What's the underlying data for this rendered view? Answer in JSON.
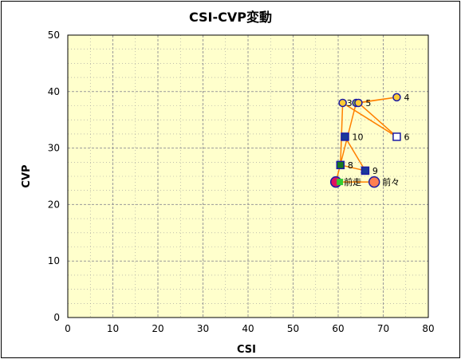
{
  "chart_data": {
    "type": "scatter",
    "title": "CSI-CVP変動",
    "xlabel": "CSI",
    "ylabel": "CVP",
    "xlim": [
      0,
      80
    ],
    "ylim": [
      0,
      50
    ],
    "xticks": [
      "0",
      "10",
      "20",
      "30",
      "40",
      "50",
      "60",
      "70",
      "80"
    ],
    "yticks": [
      "0",
      "10",
      "20",
      "30",
      "40",
      "50"
    ],
    "grid": true,
    "colors": {
      "plot_background": "#ffffcc",
      "border": "#000000",
      "grid": "#999999",
      "trail_line": "#ff8000",
      "marker_edge_blue": "#1a1aa6"
    },
    "trail_order": [
      "前々",
      "前走",
      "3",
      "4",
      "5",
      "6",
      "7",
      "8",
      "9",
      "10"
    ],
    "points": [
      {
        "label": "前々",
        "x": 68,
        "y": 24,
        "marker": "circle",
        "size": "large",
        "fill": "#ff7f50",
        "edge": "#1a1aa6",
        "label_side": "right"
      },
      {
        "label": "前走",
        "x": 59.5,
        "y": 24,
        "marker": "circle",
        "size": "large",
        "fill": "#e0115f",
        "edge": "#1a1aa6",
        "label_side": "right",
        "inner": "#33cc33"
      },
      {
        "label": "3",
        "x": 64,
        "y": 38,
        "marker": "circle",
        "size": "small",
        "fill": "#99cc33",
        "edge": "#1a1aa6",
        "label_side": "left"
      },
      {
        "label": "4",
        "x": 73,
        "y": 39,
        "marker": "circle",
        "size": "small",
        "fill": "#ffcc33",
        "edge": "#1a1aa6",
        "label_side": "right"
      },
      {
        "label": "5",
        "x": 64.5,
        "y": 38,
        "marker": "circle",
        "size": "small",
        "fill": "#ffcc33",
        "edge": "#1a1aa6",
        "label_side": "right"
      },
      {
        "label": "6",
        "x": 73,
        "y": 32,
        "marker": "square",
        "size": "small",
        "fill": "#ffffff",
        "edge": "#1a1aa6",
        "label_side": "right"
      },
      {
        "label": "7",
        "x": 61,
        "y": 38,
        "marker": "circle",
        "size": "small",
        "fill": "#ffcc33",
        "edge": "#1a1aa6",
        "label_side": "none"
      },
      {
        "label": "8",
        "x": 60.5,
        "y": 27,
        "marker": "square",
        "size": "small",
        "fill": "#1b7a1b",
        "edge": "#1a1aa6",
        "label_side": "right"
      },
      {
        "label": "9",
        "x": 66,
        "y": 26,
        "marker": "square",
        "size": "small",
        "fill": "#1a3a9a",
        "edge": "#1a1aa6",
        "label_side": "right"
      },
      {
        "label": "10",
        "x": 61.5,
        "y": 32,
        "marker": "square",
        "size": "small",
        "fill": "#1a3a9a",
        "edge": "#1a1aa6",
        "label_side": "right"
      }
    ]
  }
}
